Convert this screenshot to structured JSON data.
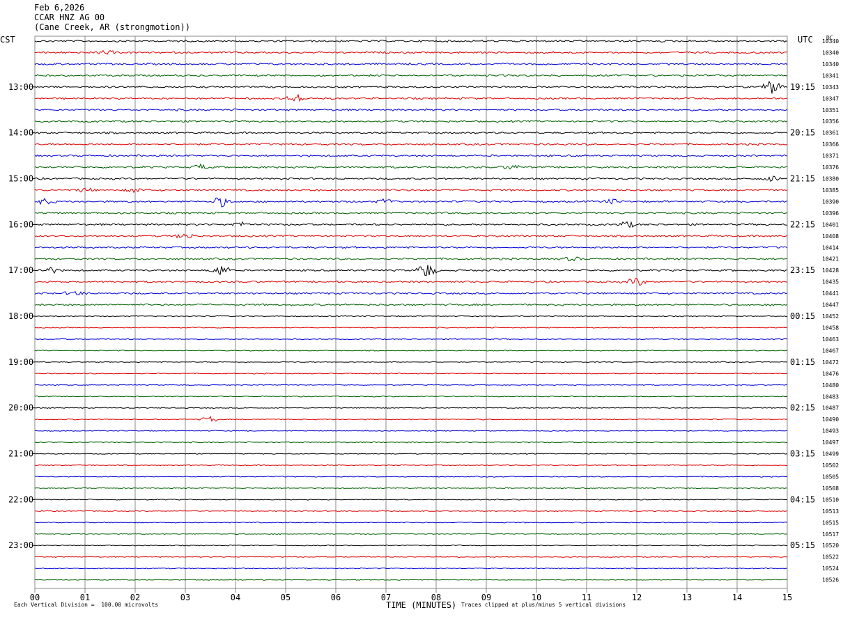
{
  "header": {
    "date": "Feb 6,2026",
    "station": "CCAR HNZ AG 00",
    "location": "(Cane Creek, AR (strongmotion))"
  },
  "left_tz": "CST",
  "right_tz": "UTC",
  "dc_label": "DC",
  "footer": {
    "scale_note": "Each Vertical Division =  100.00 microvolts",
    "clip_note": "Traces clipped at plus/minus 5 vertical divisions"
  },
  "colors": {
    "trace": [
      "#000000",
      "#e00000",
      "#0000d8",
      "#006000"
    ],
    "grid": "#888888"
  },
  "chart_data": {
    "type": "line",
    "xlabel": "TIME (MINUTES)",
    "xlim": [
      0,
      15
    ],
    "x_ticks": [
      "00",
      "01",
      "02",
      "03",
      "04",
      "05",
      "06",
      "07",
      "08",
      "09",
      "10",
      "11",
      "12",
      "13",
      "14",
      "15"
    ],
    "rows_per_hour": 4,
    "left_hour_labels": [
      "13:00",
      "14:00",
      "15:00",
      "16:00",
      "17:00",
      "18:00",
      "19:00",
      "20:00",
      "21:00",
      "22:00",
      "23:00"
    ],
    "right_hour_labels": [
      "19:15",
      "20:15",
      "21:15",
      "22:15",
      "23:15",
      "00:15",
      "01:15",
      "02:15",
      "03:15",
      "04:15",
      "05:15"
    ],
    "dc_values": [
      10340,
      10340,
      10340,
      10341,
      10343,
      10347,
      10351,
      10356,
      10361,
      10366,
      10371,
      10376,
      10380,
      10385,
      10390,
      10396,
      10401,
      10408,
      10414,
      10421,
      10428,
      10435,
      10441,
      10447,
      10452,
      10458,
      10463,
      10467,
      10472,
      10476,
      10480,
      10483,
      10487,
      10490,
      10493,
      10497,
      10499,
      10502,
      10505,
      10508,
      10510,
      10513,
      10515,
      10517,
      10520,
      10522,
      10524,
      10526
    ],
    "events": [
      {
        "row": 1,
        "minute": 1.4,
        "amp": 0.35
      },
      {
        "row": 4,
        "minute": 14.7,
        "amp": 1.1
      },
      {
        "row": 5,
        "minute": 5.2,
        "amp": 0.7
      },
      {
        "row": 11,
        "minute": 3.3,
        "amp": 0.45
      },
      {
        "row": 11,
        "minute": 9.5,
        "amp": 0.4
      },
      {
        "row": 12,
        "minute": 14.7,
        "amp": 0.45
      },
      {
        "row": 13,
        "minute": 1.0,
        "amp": 0.35
      },
      {
        "row": 13,
        "minute": 2.0,
        "amp": 0.35
      },
      {
        "row": 14,
        "minute": 0.2,
        "amp": 0.45
      },
      {
        "row": 14,
        "minute": 3.7,
        "amp": 0.9
      },
      {
        "row": 14,
        "minute": 7.0,
        "amp": 0.4
      },
      {
        "row": 14,
        "minute": 11.5,
        "amp": 0.35
      },
      {
        "row": 16,
        "minute": 4.1,
        "amp": 0.45
      },
      {
        "row": 16,
        "minute": 11.8,
        "amp": 0.5
      },
      {
        "row": 17,
        "minute": 3.0,
        "amp": 0.5
      },
      {
        "row": 19,
        "minute": 10.7,
        "amp": 0.35
      },
      {
        "row": 20,
        "minute": 0.3,
        "amp": 0.5
      },
      {
        "row": 20,
        "minute": 3.7,
        "amp": 0.9
      },
      {
        "row": 20,
        "minute": 7.8,
        "amp": 1.4
      },
      {
        "row": 21,
        "minute": 12.0,
        "amp": 0.7
      },
      {
        "row": 22,
        "minute": 0.8,
        "amp": 0.4
      },
      {
        "row": 33,
        "minute": 3.5,
        "amp": 0.5
      }
    ]
  }
}
